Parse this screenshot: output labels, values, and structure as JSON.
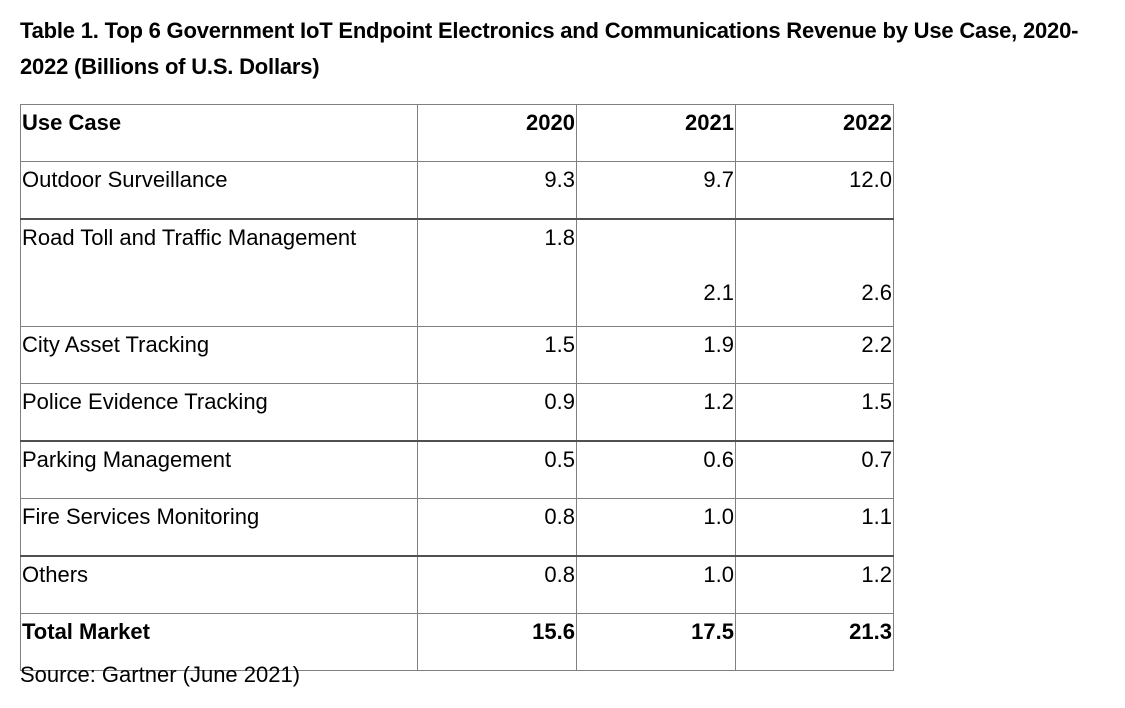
{
  "title": "Table 1. Top 6 Government IoT Endpoint Electronics and Communications Revenue by Use Case, 2020-2022 (Billions of U.S. Dollars)",
  "table": {
    "headers": [
      "Use Case",
      "2020",
      "2021",
      "2022"
    ],
    "rows": [
      {
        "use_case": "Outdoor Surveillance",
        "y2020": "9.3",
        "y2021": "9.7",
        "y2022": "12.0"
      },
      {
        "use_case": "Road Toll and Traffic Management",
        "y2020": "1.8",
        "y2021": "2.1",
        "y2022": "2.6"
      },
      {
        "use_case": "City Asset Tracking",
        "y2020": "1.5",
        "y2021": "1.9",
        "y2022": "2.2"
      },
      {
        "use_case": "Police Evidence Tracking",
        "y2020": "0.9",
        "y2021": "1.2",
        "y2022": "1.5"
      },
      {
        "use_case": "Parking Management",
        "y2020": "0.5",
        "y2021": "0.6",
        "y2022": "0.7"
      },
      {
        "use_case": "Fire Services Monitoring",
        "y2020": "0.8",
        "y2021": "1.0",
        "y2022": "1.1"
      },
      {
        "use_case": "Others",
        "y2020": "0.8",
        "y2021": "1.0",
        "y2022": "1.2"
      }
    ],
    "total": {
      "use_case": "Total Market",
      "y2020": "15.6",
      "y2021": "17.5",
      "y2022": "21.3"
    }
  },
  "source": "Source: Gartner (June 2021)"
}
